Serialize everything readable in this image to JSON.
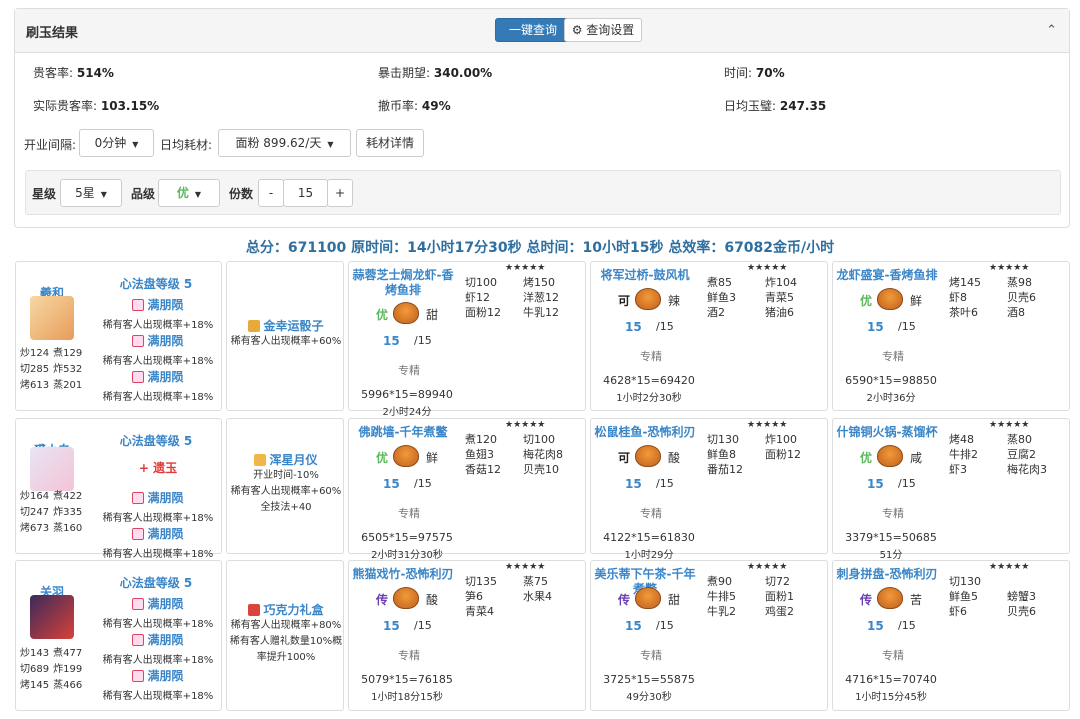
{
  "panel": {
    "title": "刷玉结果",
    "query_btn": "一键查询",
    "settings_btn": "查询设置"
  },
  "stats": {
    "vip_label": "贵客率:",
    "vip_value": "514%",
    "crit_label": "暴击期望:",
    "crit_value": "340.00%",
    "time_label": "时间:",
    "time_value": "70%",
    "real_vip_label": "实际贵客率:",
    "real_vip_value": "103.15%",
    "coin_label": "撤币率:",
    "coin_value": "49%",
    "daily_jade_label": "日均玉璧:",
    "daily_jade_value": "247.35"
  },
  "controls": {
    "interval_label": "开业间隔:",
    "interval_value": "0分钟",
    "daily_label": "日均耗材:",
    "daily_value": "面粉 899.62/天",
    "detail_btn": "耗材详情",
    "star_label": "星级",
    "star_value": "5星",
    "grade_label": "品级",
    "grade_value": "优",
    "portion_label": "份数",
    "portion_minus": "-",
    "portion_value": "15",
    "portion_plus": "+"
  },
  "summary": "总分：671100 原时间：14小时17分30秒 总时间：10小时15秒 总效率：67082金币/小时",
  "rows": [
    {
      "chef": {
        "name": "羲和",
        "stats": [
          "炒124",
          "煮129",
          "切285",
          "炸532",
          "烤613",
          "蒸201"
        ],
        "skill": "心法盘等级 5",
        "gems": [
          {
            "name": "满朋陨",
            "desc": "稀有客人出现概率+18%"
          },
          {
            "name": "满朋陨",
            "desc": "稀有客人出现概率+18%"
          },
          {
            "name": "满朋陨",
            "desc": "稀有客人出现概率+18%"
          }
        ]
      },
      "equip": {
        "name": "金幸运骰子",
        "desc": [
          "稀有客人出现概率+60%"
        ]
      },
      "dishes": [
        {
          "name": "蒜蓉芝士焗龙虾-香烤鱼排",
          "stars": "★★★★★",
          "grade": "优",
          "flavor": "甜",
          "qty": "15",
          "max": "/15",
          "ings": [
            "切100",
            "烤150",
            "虾12",
            "洋葱12",
            "面粉12",
            "牛乳12"
          ],
          "spec": "专精",
          "calc": "5996*15=89940",
          "time": "2小时24分"
        },
        {
          "name": "将军过桥-鼓风机",
          "stars": "★★★★★",
          "grade": "可",
          "flavor": "辣",
          "qty": "15",
          "max": "/15",
          "ings": [
            "煮85",
            "炸104",
            "鲜鱼3",
            "青菜5",
            "酒2",
            "猪油6"
          ],
          "spec": "专精",
          "calc": "4628*15=69420",
          "time": "1小时2分30秒"
        },
        {
          "name": "龙虾盛宴-香烤鱼排",
          "stars": "★★★★★",
          "grade": "优",
          "flavor": "鲜",
          "qty": "15",
          "max": "/15",
          "ings": [
            "烤145",
            "蒸98",
            "虾8",
            "贝壳6",
            "茶叶6",
            "酒8"
          ],
          "spec": "专精",
          "calc": "6590*15=98850",
          "time": "2小时36分"
        }
      ]
    },
    {
      "chef": {
        "name": "裘小白",
        "stats": [
          "炒164",
          "煮422",
          "切247",
          "炸335",
          "烤673",
          "蒸160"
        ],
        "skill": "心法盘等级 5",
        "gems": [
          {
            "name": "+ 遗玉",
            "desc": ""
          },
          {
            "name": "满朋陨",
            "desc": "稀有客人出现概率+18%"
          },
          {
            "name": "满朋陨",
            "desc": "稀有客人出现概率+18%"
          }
        ]
      },
      "equip": {
        "name": "浑星月仪",
        "desc": [
          "开业时间-10%",
          "稀有客人出现概率+60%",
          "全技法+40"
        ]
      },
      "dishes": [
        {
          "name": "佛跳墙-千年煮鳖",
          "stars": "★★★★★",
          "grade": "优",
          "flavor": "鲜",
          "qty": "15",
          "max": "/15",
          "ings": [
            "煮120",
            "切100",
            "鱼翅3",
            "梅花肉8",
            "香菇12",
            "贝壳10"
          ],
          "spec": "专精",
          "calc": "6505*15=97575",
          "time": "2小时31分30秒"
        },
        {
          "name": "松鼠桂鱼-恐怖利刃",
          "stars": "★★★★★",
          "grade": "可",
          "flavor": "酸",
          "qty": "15",
          "max": "/15",
          "ings": [
            "切130",
            "炸100",
            "鲜鱼8",
            "面粉12",
            "番茄12",
            ""
          ],
          "spec": "专精",
          "calc": "4122*15=61830",
          "time": "1小时29分"
        },
        {
          "name": "什锦铜火锅-蒸馏杯",
          "stars": "★★★★★",
          "grade": "优",
          "flavor": "咸",
          "qty": "15",
          "max": "/15",
          "ings": [
            "烤48",
            "蒸80",
            "牛排2",
            "豆腐2",
            "虾3",
            "梅花肉3"
          ],
          "spec": "专精",
          "calc": "3379*15=50685",
          "time": "51分"
        }
      ]
    },
    {
      "chef": {
        "name": "关羽",
        "stats": [
          "炒143",
          "煮477",
          "切689",
          "炸199",
          "烤145",
          "蒸466"
        ],
        "skill": "心法盘等级 5",
        "gems": [
          {
            "name": "满朋陨",
            "desc": "稀有客人出现概率+18%"
          },
          {
            "name": "满朋陨",
            "desc": "稀有客人出现概率+18%"
          },
          {
            "name": "满朋陨",
            "desc": "稀有客人出现概率+18%"
          }
        ]
      },
      "equip": {
        "name": "巧克力礼盒",
        "desc": [
          "稀有客人出现概率+80%",
          "稀有客人赠礼数量10%概",
          "率提升100%"
        ]
      },
      "dishes": [
        {
          "name": "熊猫戏竹-恐怖利刃",
          "stars": "★★★★★",
          "grade": "传",
          "flavor": "酸",
          "qty": "15",
          "max": "/15",
          "ings": [
            "切135",
            "蒸75",
            "笋6",
            "水果4",
            "青菜4",
            ""
          ],
          "spec": "专精",
          "calc": "5079*15=76185",
          "time": "1小时18分15秒"
        },
        {
          "name": "美乐蒂下午茶-千年煮鳖",
          "stars": "★★★★★",
          "grade": "传",
          "flavor": "甜",
          "qty": "15",
          "max": "/15",
          "ings": [
            "煮90",
            "切72",
            "牛排5",
            "面粉1",
            "牛乳2",
            "鸡蛋2"
          ],
          "spec": "专精",
          "calc": "3725*15=55875",
          "time": "49分30秒"
        },
        {
          "name": "刺身拼盘-恐怖利刃",
          "stars": "★★★★★",
          "grade": "传",
          "flavor": "苦",
          "qty": "15",
          "max": "/15",
          "ings": [
            "切130",
            "",
            "鲜鱼5",
            "螃蟹3",
            "虾6",
            "贝壳6"
          ],
          "spec": "专精",
          "calc": "4716*15=70740",
          "time": "1小时15分45秒"
        }
      ]
    }
  ],
  "colors": {
    "grade_you": "#5cb85c",
    "grade_ke": "#222222",
    "grade_chuan": "#6a3fb0",
    "gem_red": "#e23a3a",
    "link_blue": "#3a86c8",
    "primary": "#337ab7"
  }
}
